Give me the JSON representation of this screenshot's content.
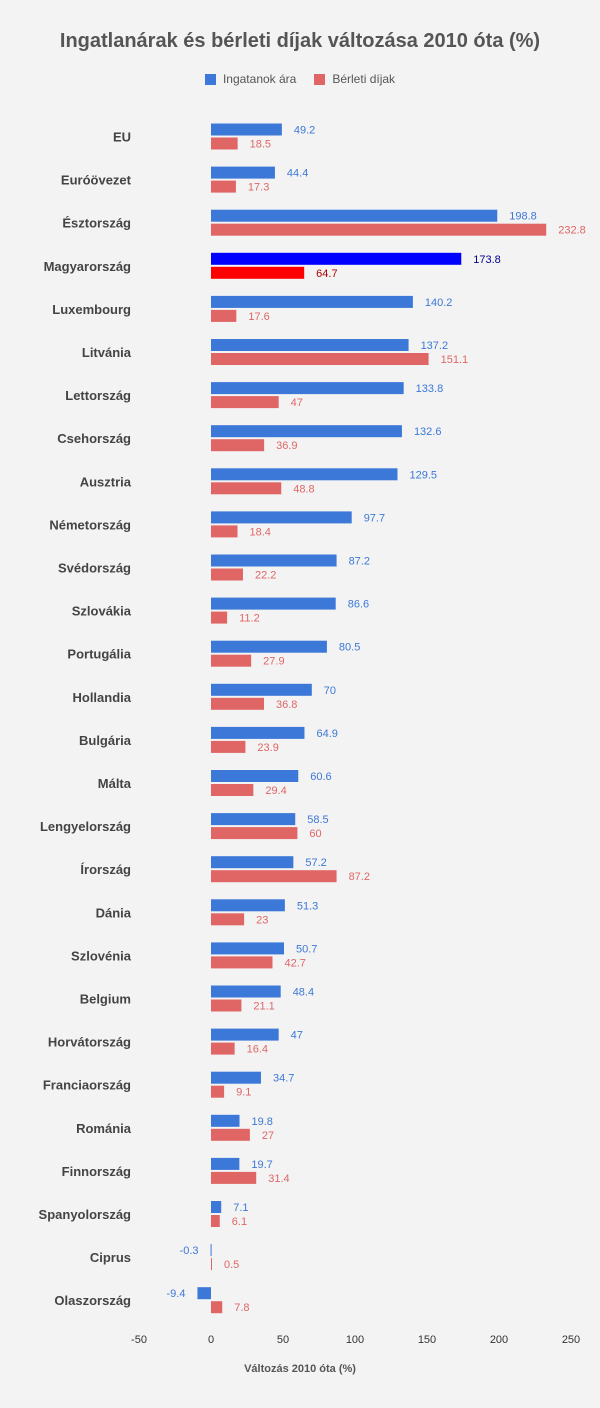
{
  "chart_data": {
    "type": "bar",
    "orientation": "horizontal",
    "title": "Ingatlanárak és bérleti díjak változása 2010 óta (%)",
    "xlabel": "Változás 2010 óta (%)",
    "xlim": [
      -50,
      250
    ],
    "xticks": [
      "-50",
      "0",
      "50",
      "100",
      "150",
      "200",
      "250"
    ],
    "xtick_values": [
      -50,
      0,
      50,
      100,
      150,
      200,
      250
    ],
    "legend_position": "top",
    "grid": false,
    "highlight_category": "Magyarország",
    "categories": [
      "EU",
      "Euróövezet",
      "Észtország",
      "Magyarország",
      "Luxembourg",
      "Litvánia",
      "Lettország",
      "Csehország",
      "Ausztria",
      "Németország",
      "Svédország",
      "Szlovákia",
      "Portugália",
      "Hollandia",
      "Bulgária",
      "Málta",
      "Lengyelország",
      "Írország",
      "Dánia",
      "Szlovénia",
      "Belgium",
      "Horvátország",
      "Franciaország",
      "Románia",
      "Finnország",
      "Spanyolország",
      "Ciprus",
      "Olaszország"
    ],
    "series": [
      {
        "name": "Ingatanok ára",
        "color": "#3c78d8",
        "highlight_color": "#0000ff",
        "values": [
          49.2,
          44.4,
          198.8,
          173.8,
          140.2,
          137.2,
          133.8,
          132.6,
          129.5,
          97.7,
          87.2,
          86.6,
          80.5,
          70,
          64.9,
          60.6,
          58.5,
          57.2,
          51.3,
          50.7,
          48.4,
          47,
          34.7,
          19.8,
          19.7,
          7.1,
          -0.3,
          -9.4
        ],
        "labels": [
          "49.2",
          "44.4",
          "198.8",
          "173.8",
          "140.2",
          "137.2",
          "133.8",
          "132.6",
          "129.5",
          "97.7",
          "87.2",
          "86.6",
          "80.5",
          "70",
          "64.9",
          "60.6",
          "58.5",
          "57.2",
          "51.3",
          "50.7",
          "48.4",
          "47",
          "34.7",
          "19.8",
          "19.7",
          "7.1",
          "-0.3",
          "-9.4"
        ]
      },
      {
        "name": "Bérleti díjak",
        "color": "#e06666",
        "highlight_color": "#ff0000",
        "values": [
          18.5,
          17.3,
          232.8,
          64.7,
          17.6,
          151.1,
          47,
          36.9,
          48.8,
          18.4,
          22.2,
          11.2,
          27.9,
          36.8,
          23.9,
          29.4,
          60,
          87.2,
          23,
          42.7,
          21.1,
          16.4,
          9.1,
          27,
          31.4,
          6.1,
          0.5,
          7.8
        ],
        "labels": [
          "18.5",
          "17.3",
          "232.8",
          "64.7",
          "17.6",
          "151.1",
          "47",
          "36.9",
          "48.8",
          "18.4",
          "22.2",
          "11.2",
          "27.9",
          "36.8",
          "23.9",
          "29.4",
          "60",
          "87.2",
          "23",
          "42.7",
          "21.1",
          "16.4",
          "9.1",
          "27",
          "31.4",
          "6.1",
          "0.5",
          "7.8"
        ]
      }
    ]
  }
}
